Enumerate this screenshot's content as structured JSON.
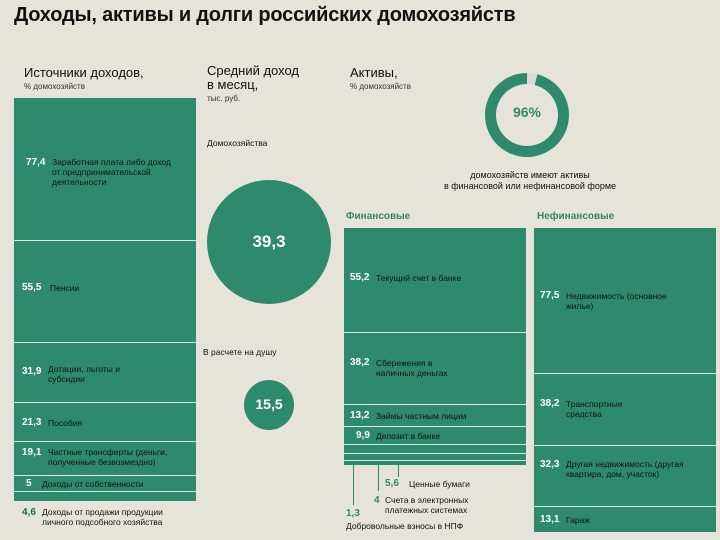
{
  "title": "Доходы, активы и долги российских домохозяйств",
  "colors": {
    "accent": "#2e8a6c",
    "background": "#e6e3da"
  },
  "chart_data": [
    {
      "type": "bar",
      "title": "Источники доходов,",
      "subtitle": "% домохозяйств",
      "categories": [
        "Заработная плата либо доход от предпринимательской деятельности",
        "Пенсии",
        "Дотации, льготы и субсидии",
        "Пособия",
        "Частные трансферты (деньги, полученные безвозмездно)",
        "Доходы от собственности",
        "Доходы от продажи продукции личного подсобного хозяйства"
      ],
      "values": [
        77.4,
        55.5,
        31.9,
        21.3,
        19.1,
        5,
        4.6
      ],
      "value_labels": [
        "77,4",
        "55,5",
        "31,9",
        "21,3",
        "19,1",
        "5",
        "4,6"
      ]
    },
    {
      "type": "bubble",
      "title": "Средний доход в месяц,",
      "subtitle": "тыс. руб.",
      "categories": [
        "Домохозяйства",
        "В расчете на душу"
      ],
      "values": [
        39.3,
        15.5
      ],
      "value_labels": [
        "39,3",
        "15,5"
      ]
    },
    {
      "type": "pie",
      "title": "Активы,",
      "subtitle": "% домохозяйств",
      "values": [
        96
      ],
      "value_label": "96%",
      "caption_line1": "домохозяйств имеют активы",
      "caption_line2": "в финансовой или нефинансовой форме"
    },
    {
      "type": "bar",
      "title": "Финансовые",
      "categories": [
        "Текущий счет в банке",
        "Сбережения в наличных деньгах",
        "Займы частным лицам",
        "Депозит в банке",
        "Ценные бумаги",
        "Счета в электронных платежных системах",
        "Добровольные взносы в НПФ"
      ],
      "values": [
        55.2,
        38.2,
        13.2,
        9.9,
        5.6,
        4,
        1.3
      ],
      "value_labels": [
        "55,2",
        "38,2",
        "13,2",
        "9,9",
        "5,6",
        "4",
        "1,3"
      ]
    },
    {
      "type": "bar",
      "title": "Нефинансовые",
      "categories": [
        "Недвижимость (основное жилье)",
        "Транспортные средства",
        "Другая недвижимость (другая квартира, дом, участок)",
        "Гараж"
      ],
      "values": [
        77.5,
        38.2,
        32.3,
        13.1
      ],
      "value_labels": [
        "77,5",
        "38,2",
        "32,3",
        "13,1"
      ]
    }
  ],
  "labels": {
    "income": [
      "Заработная плата либо доход от предпринимательской деятельности",
      "Пенсии",
      "Дотации, льготы и субсидии",
      "Пособия",
      "Частные трансферты (деньги, полученные безвозмездно)",
      "Доходы от собственности",
      "Доходы от продажи продукции личного подсобного хозяйства"
    ],
    "financial": [
      "Текущий счет в банке",
      "Сбережения в наличных деньгах",
      "Займы частным лицам",
      "Депозит в банке",
      "Ценные бумаги",
      "Счета в электронных платежных системах",
      "Добровольные взносы в НПФ"
    ],
    "nonfinancial": [
      "Недвижимость (основное жилье)",
      "Транспортные средства",
      "Другая недвижимость (другая квартира, дом, участок)",
      "Гараж"
    ]
  }
}
